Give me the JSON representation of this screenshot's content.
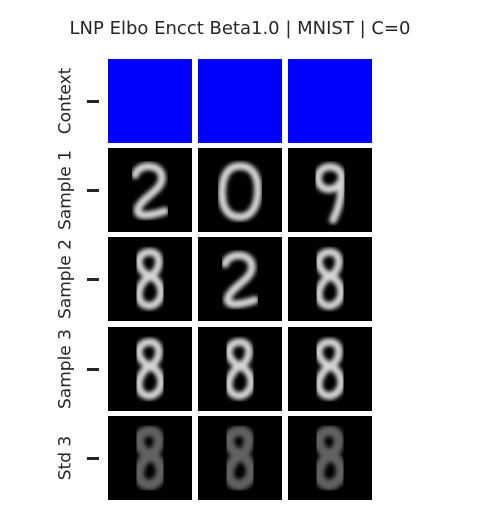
{
  "title": "LNP Elbo Encct Beta1.0 | MNIST | C=0",
  "rows": [
    {
      "label": "Context",
      "kind": "context",
      "digits": [
        "",
        "",
        ""
      ]
    },
    {
      "label": "Sample 1",
      "kind": "sample",
      "digits": [
        "2",
        "0",
        "9"
      ]
    },
    {
      "label": "Sample 2",
      "kind": "sample",
      "digits": [
        "8",
        "2",
        "8"
      ]
    },
    {
      "label": "Sample 3",
      "kind": "sample",
      "digits": [
        "8",
        "8",
        "8"
      ]
    },
    {
      "label": "Std 3",
      "kind": "std",
      "digits": [
        "8",
        "8",
        "8"
      ]
    }
  ],
  "colors": {
    "context": "#0000ff",
    "background": "#000000",
    "sample_stroke": "#e8e8e8",
    "std_stroke": "#6a6a6a"
  }
}
